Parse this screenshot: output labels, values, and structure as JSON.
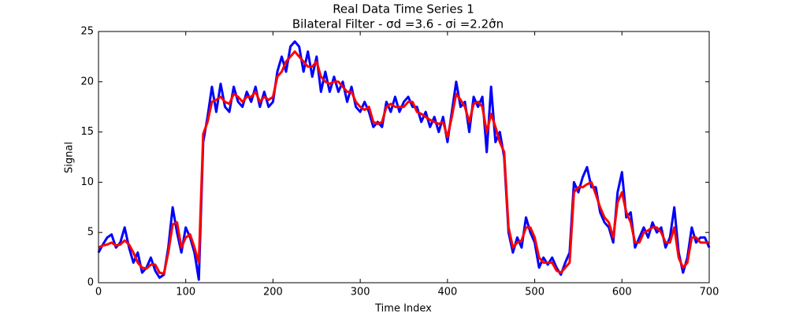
{
  "chart_data": {
    "type": "line",
    "title": "Real Data Time Series 1",
    "subtitle": "Bilateral Filter - σd =3.6 - σi =2.2σ̂n",
    "x_label": "Time Index",
    "y_label": "Signal",
    "x": [
      0,
      5,
      10,
      15,
      20,
      25,
      30,
      35,
      40,
      45,
      50,
      55,
      60,
      65,
      70,
      75,
      80,
      85,
      90,
      95,
      100,
      105,
      110,
      115,
      120,
      125,
      130,
      135,
      140,
      145,
      150,
      155,
      160,
      165,
      170,
      175,
      180,
      185,
      190,
      195,
      200,
      205,
      210,
      215,
      220,
      225,
      230,
      235,
      240,
      245,
      250,
      255,
      260,
      265,
      270,
      275,
      280,
      285,
      290,
      295,
      300,
      305,
      310,
      315,
      320,
      325,
      330,
      335,
      340,
      345,
      350,
      355,
      360,
      365,
      370,
      375,
      380,
      385,
      390,
      395,
      400,
      405,
      410,
      415,
      420,
      425,
      430,
      435,
      440,
      445,
      450,
      455,
      460,
      465,
      470,
      475,
      480,
      485,
      490,
      495,
      500,
      505,
      510,
      515,
      520,
      525,
      530,
      535,
      540,
      545,
      550,
      555,
      560,
      565,
      570,
      575,
      580,
      585,
      590,
      595,
      600,
      605,
      610,
      615,
      620,
      625,
      630,
      635,
      640,
      645,
      650,
      655,
      660,
      665,
      670,
      675,
      680,
      685,
      690,
      695,
      700
    ],
    "series": [
      {
        "color": "#0000ff",
        "values": [
          3.0,
          3.8,
          4.5,
          4.8,
          3.5,
          4.0,
          5.5,
          3.5,
          2.0,
          3.0,
          1.0,
          1.5,
          2.5,
          1.2,
          0.5,
          0.8,
          3.5,
          7.5,
          5.0,
          3.0,
          5.5,
          4.5,
          3.0,
          0.3,
          14.0,
          16.5,
          19.5,
          17.0,
          19.8,
          17.5,
          17.0,
          19.5,
          18.0,
          17.5,
          19.0,
          18.0,
          19.5,
          17.5,
          19.0,
          17.5,
          18.0,
          21.0,
          22.5,
          21.0,
          23.5,
          24.0,
          23.5,
          21.0,
          23.0,
          20.5,
          22.5,
          19.0,
          21.0,
          19.0,
          20.5,
          19.0,
          20.0,
          18.0,
          19.5,
          17.5,
          17.0,
          18.0,
          17.0,
          15.5,
          16.0,
          15.5,
          18.0,
          17.0,
          18.5,
          17.0,
          18.0,
          18.5,
          17.5,
          17.5,
          16.0,
          17.0,
          15.5,
          16.5,
          15.0,
          16.5,
          14.0,
          17.0,
          20.0,
          17.5,
          18.0,
          15.0,
          18.5,
          17.5,
          18.5,
          13.0,
          19.5,
          14.0,
          15.0,
          12.5,
          5.0,
          3.0,
          4.5,
          3.5,
          6.5,
          5.0,
          4.0,
          1.5,
          2.5,
          1.8,
          2.5,
          1.5,
          0.8,
          2.0,
          3.0,
          10.0,
          9.0,
          10.5,
          11.5,
          9.5,
          9.5,
          7.0,
          6.0,
          5.5,
          4.0,
          9.0,
          11.0,
          6.5,
          7.0,
          3.5,
          4.5,
          5.5,
          4.5,
          6.0,
          5.0,
          5.5,
          3.5,
          4.5,
          7.5,
          3.0,
          1.0,
          2.5,
          5.5,
          4.0,
          4.5,
          4.5,
          3.5
        ]
      },
      {
        "color": "#ff0000",
        "values": [
          3.5,
          3.7,
          3.8,
          4.0,
          3.7,
          3.8,
          4.2,
          3.8,
          3.0,
          2.0,
          1.5,
          1.4,
          1.8,
          1.8,
          1.0,
          0.9,
          3.0,
          5.8,
          6.0,
          3.5,
          4.5,
          4.8,
          3.5,
          2.0,
          14.8,
          16.0,
          18.0,
          18.2,
          18.5,
          18.0,
          17.8,
          18.8,
          18.5,
          18.0,
          18.5,
          18.5,
          19.0,
          18.0,
          18.5,
          18.2,
          18.5,
          20.5,
          21.0,
          22.0,
          22.5,
          23.0,
          22.5,
          22.0,
          21.5,
          21.5,
          22.0,
          20.5,
          20.0,
          19.8,
          20.0,
          20.0,
          19.5,
          19.0,
          19.0,
          18.0,
          17.5,
          17.2,
          17.5,
          16.0,
          15.8,
          16.0,
          17.5,
          17.8,
          17.5,
          17.5,
          17.5,
          18.0,
          18.0,
          17.0,
          16.8,
          16.5,
          16.2,
          16.0,
          15.8,
          16.0,
          14.5,
          16.5,
          18.8,
          18.2,
          17.5,
          16.0,
          17.8,
          18.0,
          17.5,
          15.0,
          16.8,
          15.5,
          14.0,
          13.0,
          5.5,
          3.5,
          4.0,
          4.2,
          5.5,
          5.5,
          4.5,
          2.5,
          2.0,
          2.0,
          2.0,
          1.2,
          1.0,
          1.5,
          2.0,
          9.0,
          9.5,
          9.5,
          9.8,
          10.0,
          8.8,
          7.5,
          6.5,
          6.0,
          4.5,
          8.0,
          9.0,
          7.0,
          6.0,
          4.0,
          4.0,
          5.0,
          5.2,
          5.5,
          5.5,
          5.0,
          4.0,
          4.0,
          5.5,
          2.5,
          1.5,
          2.0,
          4.5,
          4.5,
          4.0,
          4.0,
          4.0
        ]
      }
    ],
    "xlim": [
      0,
      700
    ],
    "xticks": [
      0,
      100,
      200,
      300,
      400,
      500,
      600,
      700
    ],
    "ylim": [
      0,
      25
    ],
    "yticks": [
      0,
      5,
      10,
      15,
      20,
      25
    ]
  }
}
